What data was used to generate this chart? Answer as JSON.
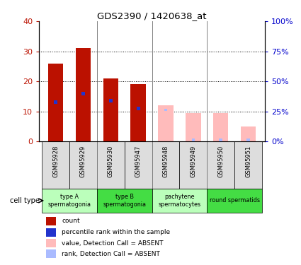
{
  "title": "GDS2390 / 1420638_at",
  "samples": [
    "GSM95928",
    "GSM95929",
    "GSM95930",
    "GSM95947",
    "GSM95948",
    "GSM95949",
    "GSM95950",
    "GSM95951"
  ],
  "count_values": [
    26,
    31,
    21,
    19,
    0,
    0,
    0,
    0
  ],
  "rank_values": [
    13,
    16,
    13.5,
    11,
    0,
    0,
    0,
    0
  ],
  "absent_count_values": [
    0,
    0,
    0,
    0,
    12,
    9.5,
    9.5,
    5
  ],
  "absent_rank_values": [
    0,
    0,
    0,
    0,
    10.5,
    0.5,
    0.5,
    0.5
  ],
  "is_absent": [
    false,
    false,
    false,
    false,
    true,
    true,
    true,
    true
  ],
  "cell_types": [
    {
      "label": "type A\nspermatogonia",
      "start": 0,
      "end": 2,
      "color": "#bbffbb"
    },
    {
      "label": "type B\nspermatogonia",
      "start": 2,
      "end": 4,
      "color": "#44dd44"
    },
    {
      "label": "pachytene\nspermatocytes",
      "start": 4,
      "end": 6,
      "color": "#bbffbb"
    },
    {
      "label": "round spermatids",
      "start": 6,
      "end": 8,
      "color": "#44dd44"
    }
  ],
  "ylim": [
    0,
    40
  ],
  "y2lim": [
    0,
    100
  ],
  "yticks": [
    0,
    10,
    20,
    30,
    40
  ],
  "y2ticks": [
    0,
    25,
    50,
    75,
    100
  ],
  "y2ticklabels": [
    "0%",
    "25%",
    "50%",
    "75%",
    "100%"
  ],
  "present_bar_color": "#bb1100",
  "absent_bar_color": "#ffbbbb",
  "rank_color_present": "#2233cc",
  "rank_color_absent": "#aabbff",
  "sample_box_color": "#dddddd",
  "legend_items": [
    {
      "label": "count",
      "color": "#bb1100"
    },
    {
      "label": "percentile rank within the sample",
      "color": "#2233cc"
    },
    {
      "label": "value, Detection Call = ABSENT",
      "color": "#ffbbbb"
    },
    {
      "label": "rank, Detection Call = ABSENT",
      "color": "#aabbff"
    }
  ]
}
